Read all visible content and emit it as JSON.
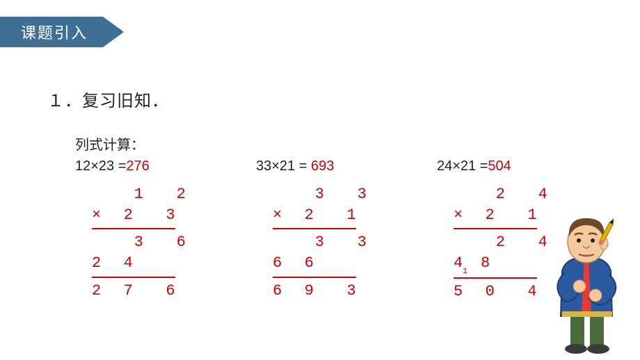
{
  "banner": {
    "title": "课题引入"
  },
  "heading": "１．复习旧知．",
  "subheading": "列式计算：",
  "problems": [
    {
      "expression": "12×23 =",
      "answer": "276",
      "vertical": {
        "top1": "    1   2",
        "top2": "×  2   3",
        "p1": "    3   6",
        "p2": "2  4",
        "result": "2  7   6"
      }
    },
    {
      "expression": "33×21 =",
      "answer": " 693",
      "vertical": {
        "top1": "    3   3",
        "top2": "×  2   1",
        "p1": "    3   3",
        "p2": "6  6",
        "result": "6  9   3"
      }
    },
    {
      "expression": "24×21 =",
      "answer": "504",
      "vertical": {
        "top1": "    2   4",
        "top2": "×  2   1",
        "p1": "    2   4",
        "p2": "4  8",
        "carry": "1",
        "result": "5  0   4"
      }
    }
  ],
  "colors": {
    "banner_bg": "#3f6f94",
    "banner_text": "#ffffff",
    "text": "#222222",
    "math_red": "#d20000",
    "background": "#ffffff"
  },
  "character": {
    "skin": "#f4c99b",
    "hair": "#6b4a2a",
    "jacket": "#2c5aa0",
    "jacket_trim": "#d9b64a",
    "shirt": "#e63b2e",
    "pants": "#4a6b3a",
    "shoes": "#3a3a3a",
    "pencil_body": "#e0b000",
    "pencil_tip": "#222222",
    "pencil_eraser": "#e06f6f"
  }
}
